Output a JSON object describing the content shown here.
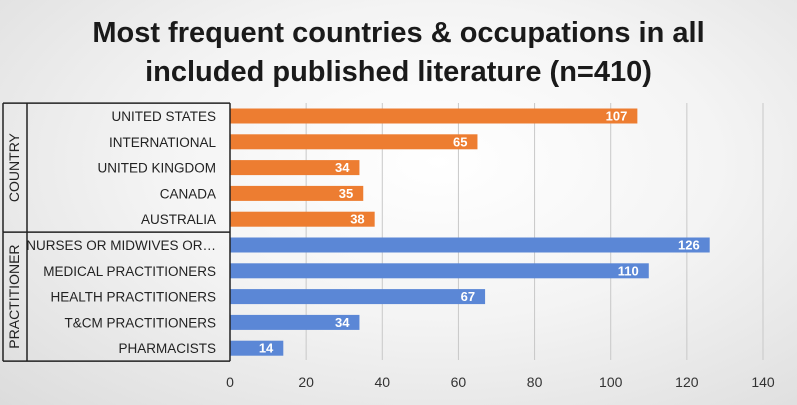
{
  "title_line1": "Most frequent countries & occupations in all",
  "title_line2": "included published literature (n=410)",
  "chart_data": {
    "type": "bar",
    "orientation": "horizontal",
    "title": "Most frequent countries & occupations in all included published literature (n=410)",
    "xlim": [
      0,
      140
    ],
    "xticks": [
      0,
      20,
      40,
      60,
      80,
      100,
      120,
      140
    ],
    "grid": true,
    "groups": [
      {
        "name": "COUNTRY",
        "color": "#ED7D31",
        "categories": [
          "UNITED STATES",
          "INTERNATIONAL",
          "UNITED KINGDOM",
          "CANADA",
          "AUSTRALIA"
        ],
        "values": [
          107,
          65,
          34,
          35,
          38
        ]
      },
      {
        "name": "PRACTITIONER",
        "color": "#5B87D6",
        "categories": [
          "NURSES OR MIDWIVES OR…",
          "MEDICAL PRACTITIONERS",
          "HEALTH PRACTITIONERS",
          "T&CM PRACTITIONERS",
          "PHARMACISTS"
        ],
        "values": [
          126,
          110,
          67,
          34,
          14
        ]
      }
    ]
  }
}
